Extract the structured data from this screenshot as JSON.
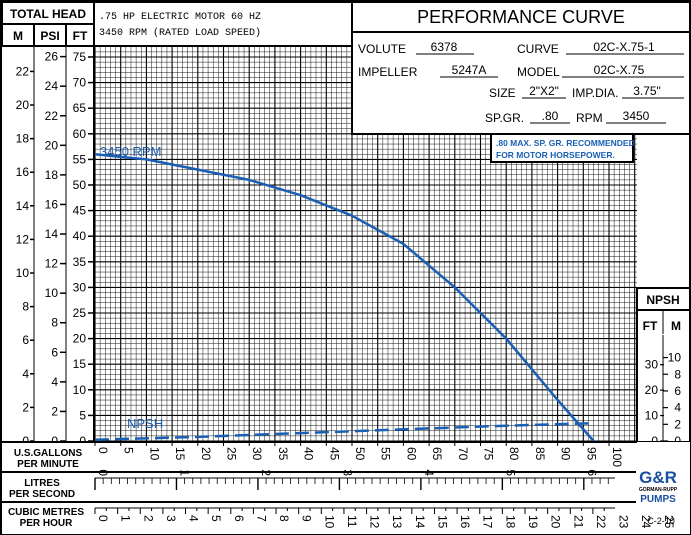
{
  "title": "PERFORMANCE CURVE",
  "motor_line1": ".75 HP ELECTRIC MOTOR 60 HZ",
  "motor_line2": "3450 RPM (RATED LOAD SPEED)",
  "total_head_label": "TOTAL HEAD",
  "unit_m": "M",
  "unit_psi": "PSI",
  "unit_ft": "FT",
  "specs": {
    "volute_label": "VOLUTE",
    "volute": "6378",
    "curve_label": "CURVE",
    "curve": "02C-X.75-1",
    "impeller_label": "IMPELLER",
    "impeller": "5247A",
    "model_label": "MODEL",
    "model": "02C-X.75",
    "size_label": "SIZE",
    "size": "2\"X2\"",
    "impdia_label": "IMP.DIA.",
    "impdia": "3.75\"",
    "spgr_label": "SP.GR.",
    "spgr": ".80",
    "rpm_label": "RPM",
    "rpm": "3450"
  },
  "note_line1": ".80 MAX. SP. GR. RECOMMENDED",
  "note_line2": "FOR MOTOR HORSEPOWER.",
  "npsh_label": "NPSH",
  "npsh_unit_ft": "FT",
  "npsh_unit_m": "M",
  "axis_usgpm_line1": "U.S.GALLONS",
  "axis_usgpm_line2": "PER MINUTE",
  "axis_lps_line1": "LITRES",
  "axis_lps_line2": "PER SECOND",
  "axis_cmh_line1": "CUBIC METRES",
  "axis_cmh_line2": "PER HOUR",
  "logo_text": "G&R",
  "logo_sub": "GORMAN-RUPP",
  "logo_pumps": "PUMPS",
  "code": "C-2-10",
  "colors": {
    "curve": "#1a5fb4",
    "grid": "#000000"
  },
  "chart_data": {
    "type": "line",
    "title": "PERFORMANCE CURVE",
    "xlabel": "U.S.GALLONS PER MINUTE",
    "ylabel": "TOTAL HEAD (FT)",
    "xlim": [
      0,
      100
    ],
    "ylim": [
      0,
      75
    ],
    "x_ticks": [
      0,
      5,
      10,
      15,
      20,
      25,
      30,
      35,
      40,
      45,
      50,
      55,
      60,
      65,
      70,
      75,
      80,
      85,
      90,
      95,
      100
    ],
    "ft_ticks": [
      0,
      5,
      10,
      15,
      20,
      25,
      30,
      35,
      40,
      45,
      50,
      55,
      60,
      65,
      70,
      75
    ],
    "psi_ticks": [
      0,
      2,
      4,
      6,
      8,
      10,
      12,
      14,
      16,
      18,
      20,
      22,
      24,
      26
    ],
    "m_ticks": [
      0,
      2,
      4,
      6,
      8,
      10,
      12,
      14,
      16,
      18,
      20,
      22
    ],
    "lps_ticks": [
      0,
      1,
      2,
      3,
      4,
      5,
      6
    ],
    "cmh_ticks": [
      0,
      1,
      2,
      3,
      4,
      5,
      6,
      7,
      8,
      9,
      10,
      11,
      12,
      13,
      14,
      15,
      16,
      17,
      18,
      19,
      20,
      21,
      22,
      23,
      24,
      25
    ],
    "npsh_ft_ticks": [
      0,
      10,
      20,
      30
    ],
    "npsh_m_ticks": [
      0,
      2,
      4,
      6,
      8,
      10
    ],
    "series": [
      {
        "name": "3450 RPM",
        "x": [
          0,
          10,
          20,
          30,
          40,
          50,
          60,
          70,
          80,
          90,
          97
        ],
        "y": [
          56,
          55,
          53,
          51,
          48,
          44,
          38.5,
          30,
          20,
          8,
          0
        ]
      },
      {
        "name": "NPSH",
        "axis": "npsh_ft",
        "x": [
          0,
          20,
          40,
          60,
          80,
          97
        ],
        "y": [
          0.5,
          1.6,
          3.1,
          4.6,
          6,
          7
        ]
      }
    ],
    "labels": [
      "3450 RPM",
      "NPSH"
    ]
  }
}
